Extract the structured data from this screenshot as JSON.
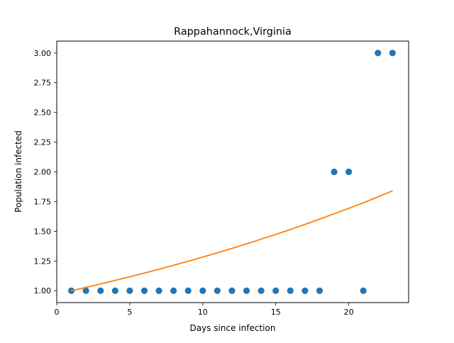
{
  "chart_data": {
    "type": "scatter",
    "title": "Rappahannock,Virginia",
    "xlabel": "Days since infection",
    "ylabel": "Population infected",
    "xlim": [
      0,
      24.1
    ],
    "ylim": [
      0.9,
      3.1
    ],
    "grid": false,
    "x_ticks": [
      {
        "value": 0,
        "label": "0"
      },
      {
        "value": 5,
        "label": "5"
      },
      {
        "value": 10,
        "label": "10"
      },
      {
        "value": 15,
        "label": "15"
      },
      {
        "value": 20,
        "label": "20"
      }
    ],
    "y_ticks": [
      {
        "value": 1.0,
        "label": "1.00"
      },
      {
        "value": 1.25,
        "label": "1.25"
      },
      {
        "value": 1.5,
        "label": "1.50"
      },
      {
        "value": 1.75,
        "label": "1.75"
      },
      {
        "value": 2.0,
        "label": "2.00"
      },
      {
        "value": 2.25,
        "label": "2.25"
      },
      {
        "value": 2.5,
        "label": "2.50"
      },
      {
        "value": 2.75,
        "label": "2.75"
      },
      {
        "value": 3.0,
        "label": "3.00"
      }
    ],
    "series": [
      {
        "kind": "scatter",
        "color": "#1f77b4",
        "x": [
          1,
          2,
          3,
          4,
          5,
          6,
          7,
          8,
          9,
          10,
          11,
          12,
          13,
          14,
          15,
          16,
          17,
          18,
          19,
          20,
          21,
          22,
          23
        ],
        "y": [
          1,
          1,
          1,
          1,
          1,
          1,
          1,
          1,
          1,
          1,
          1,
          1,
          1,
          1,
          1,
          1,
          1,
          1,
          2,
          2,
          1,
          3,
          3
        ]
      },
      {
        "kind": "line",
        "color": "#ff7f0e",
        "x": [
          1,
          2,
          3,
          4,
          5,
          6,
          7,
          8,
          9,
          10,
          11,
          12,
          13,
          14,
          15,
          16,
          17,
          18,
          19,
          20,
          21,
          22,
          23
        ],
        "y": [
          1.0,
          1.028,
          1.057,
          1.087,
          1.117,
          1.149,
          1.181,
          1.214,
          1.248,
          1.283,
          1.319,
          1.356,
          1.394,
          1.434,
          1.474,
          1.515,
          1.558,
          1.602,
          1.647,
          1.693,
          1.74,
          1.789,
          1.84
        ]
      }
    ]
  }
}
